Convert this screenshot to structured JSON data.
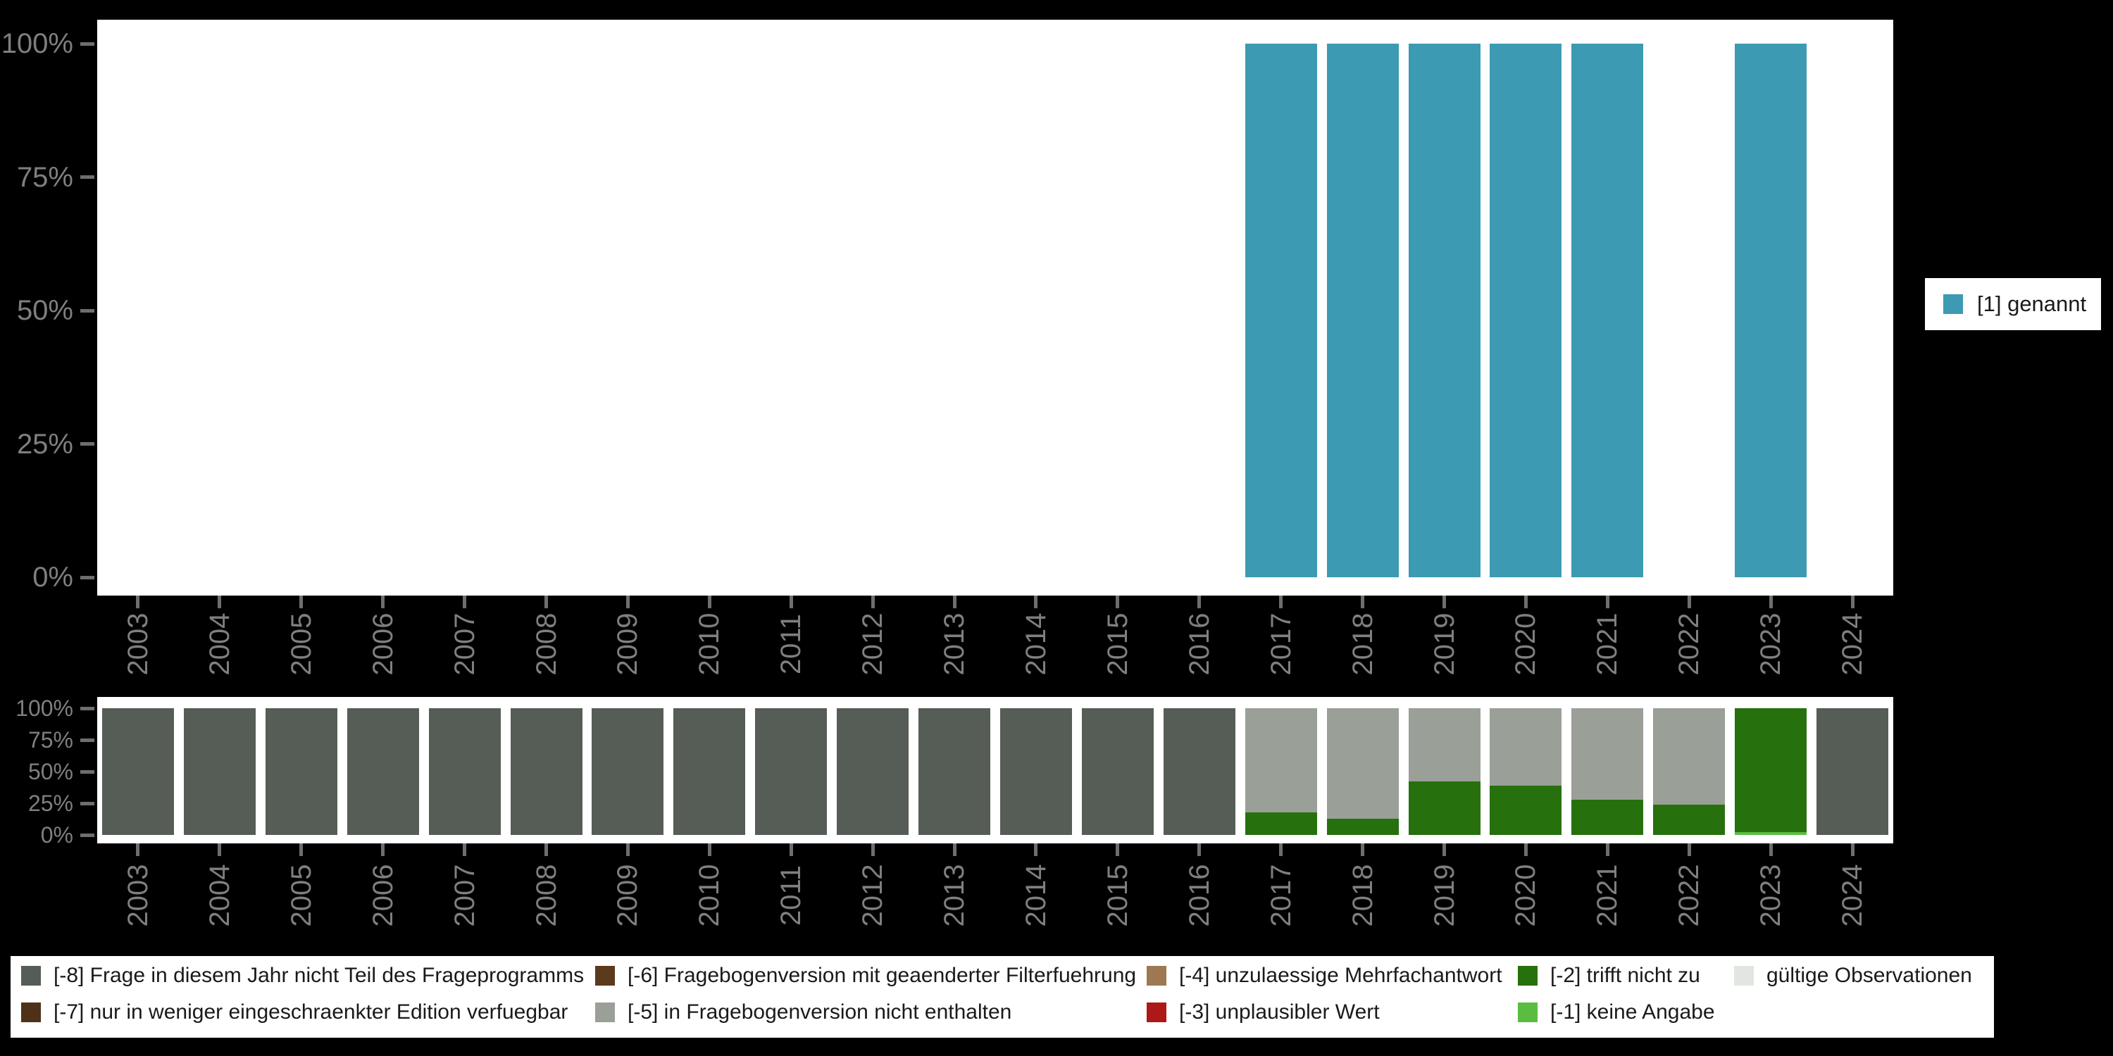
{
  "app": {
    "background": "#000000",
    "plot_background": "#ffffff"
  },
  "right_legend": {
    "label": "[1] genannt",
    "color": "#3D9AB3"
  },
  "chart_data": [
    {
      "type": "bar",
      "name": "valid-values-distribution",
      "title": "",
      "categories": [
        "2003",
        "2004",
        "2005",
        "2006",
        "2007",
        "2008",
        "2009",
        "2010",
        "2011",
        "2012",
        "2013",
        "2014",
        "2015",
        "2016",
        "2017",
        "2018",
        "2019",
        "2020",
        "2021",
        "2022",
        "2023",
        "2024"
      ],
      "series": [
        {
          "name": "[1] genannt",
          "code": "1",
          "color": "#3D9AB3",
          "values": [
            0,
            0,
            0,
            0,
            0,
            0,
            0,
            0,
            0,
            0,
            0,
            0,
            0,
            0,
            100,
            100,
            100,
            100,
            100,
            0,
            100,
            0
          ]
        }
      ],
      "xlabel": "",
      "ylabel": "",
      "y_ticks": [
        "100%",
        "75%",
        "50%",
        "25%",
        "0%"
      ],
      "y_tick_values": [
        100,
        75,
        50,
        25,
        0
      ],
      "ylim": [
        0,
        100
      ],
      "grid": false,
      "legend_position": "right"
    },
    {
      "type": "bar",
      "stacked": true,
      "name": "missing-codes-distribution",
      "title": "",
      "categories": [
        "2003",
        "2004",
        "2005",
        "2006",
        "2007",
        "2008",
        "2009",
        "2010",
        "2011",
        "2012",
        "2013",
        "2014",
        "2015",
        "2016",
        "2017",
        "2018",
        "2019",
        "2020",
        "2021",
        "2022",
        "2023",
        "2024"
      ],
      "series": [
        {
          "name": "[-1] keine Angabe",
          "code": "-1",
          "color": "#5ABD42",
          "values": [
            0,
            0,
            0,
            0,
            0,
            0,
            0,
            0,
            0,
            0,
            0,
            0,
            0,
            0,
            0,
            0,
            0,
            0,
            0,
            0,
            2,
            0
          ]
        },
        {
          "name": "[-2] trifft nicht zu",
          "code": "-2",
          "color": "#26700E",
          "values": [
            0,
            0,
            0,
            0,
            0,
            0,
            0,
            0,
            0,
            0,
            0,
            0,
            0,
            0,
            18,
            13,
            42,
            39,
            28,
            24,
            98,
            0
          ]
        },
        {
          "name": "[-5] in Fragebogenversion nicht enthalten",
          "code": "-5",
          "color": "#9A9F97",
          "values": [
            0,
            0,
            0,
            0,
            0,
            0,
            0,
            0,
            0,
            0,
            0,
            0,
            0,
            0,
            82,
            87,
            58,
            61,
            72,
            76,
            0,
            0
          ]
        },
        {
          "name": "[-8] Frage in diesem Jahr nicht Teil des Frageprogramms",
          "code": "-8",
          "color": "#565D56",
          "values": [
            100,
            100,
            100,
            100,
            100,
            100,
            100,
            100,
            100,
            100,
            100,
            100,
            100,
            100,
            0,
            0,
            0,
            0,
            0,
            0,
            0,
            100
          ]
        }
      ],
      "xlabel": "",
      "ylabel": "",
      "y_ticks": [
        "100%",
        "75%",
        "50%",
        "25%",
        "0%"
      ],
      "y_tick_values": [
        100,
        75,
        50,
        25,
        0
      ],
      "ylim": [
        0,
        100
      ],
      "grid": false,
      "legend_position": "bottom"
    }
  ],
  "legend_panel": {
    "entries": [
      {
        "code": "-8",
        "label": "[-8] Frage in diesem Jahr nicht Teil des Frageprogramms",
        "color": "#565D56",
        "col": 0,
        "row": 0
      },
      {
        "code": "-7",
        "label": "[-7] nur in weniger eingeschraenkter Edition verfuegbar",
        "color": "#4E3118",
        "col": 0,
        "row": 1
      },
      {
        "code": "-6",
        "label": "[-6] Fragebogenversion mit geaenderter Filterfuehrung",
        "color": "#5B3A1E",
        "col": 1,
        "row": 0
      },
      {
        "code": "-5",
        "label": "[-5] in Fragebogenversion nicht enthalten",
        "color": "#9A9F97",
        "col": 1,
        "row": 1
      },
      {
        "code": "-4",
        "label": "[-4] unzulaessige Mehrfachantwort",
        "color": "#9E7852",
        "col": 2,
        "row": 0
      },
      {
        "code": "-3",
        "label": "[-3] unplausibler Wert",
        "color": "#AC1917",
        "col": 2,
        "row": 1
      },
      {
        "code": "-2",
        "label": "[-2] trifft nicht zu",
        "color": "#26700E",
        "col": 3,
        "row": 0
      },
      {
        "code": "-1",
        "label": "[-1] keine Angabe",
        "color": "#5ABD42",
        "col": 3,
        "row": 1
      },
      {
        "code": "valid",
        "label": "gültige Observationen",
        "color": "#E2E6E0",
        "col": 4,
        "row": 0
      }
    ]
  }
}
